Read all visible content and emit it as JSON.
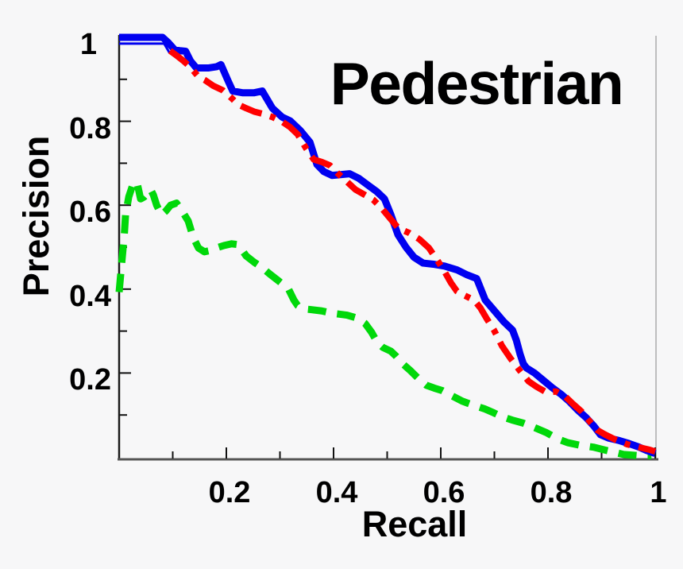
{
  "title": "Pedestrian",
  "chart_data": {
    "type": "line",
    "title": "Pedestrian",
    "xlabel": "Recall",
    "ylabel": "Precision",
    "xlim": [
      0,
      1
    ],
    "ylim": [
      0,
      1
    ],
    "grid": false,
    "legend": null,
    "xticks": {
      "labeled_values": [
        0.2,
        0.4,
        0.6,
        0.8,
        1
      ],
      "labels": [
        "0.2",
        "0.4",
        "0.6",
        "0.8",
        "1"
      ],
      "minor_values": [
        0.1,
        0.3,
        0.5,
        0.7,
        0.9
      ],
      "label_offsets_x": [
        0,
        0,
        0,
        0,
        0
      ]
    },
    "yticks": {
      "labeled_values": [
        0.2,
        0.4,
        0.6,
        0.8,
        1
      ],
      "labels": [
        "0.2",
        "0.4",
        "0.6",
        "0.8",
        "1"
      ],
      "minor_values": [
        0.1,
        0.3,
        0.5,
        0.7,
        0.9
      ],
      "label_offsets_x": [
        0,
        0,
        0,
        0,
        -18
      ]
    },
    "series": [
      {
        "name": "green-dashed",
        "color": "#00d80a",
        "style": "dashed",
        "width": 9,
        "x": [
          0.0,
          0.003,
          0.007,
          0.01,
          0.012,
          0.018,
          0.025,
          0.033,
          0.037,
          0.04,
          0.047,
          0.059,
          0.064,
          0.07,
          0.079,
          0.087,
          0.096,
          0.107,
          0.119,
          0.129,
          0.138,
          0.148,
          0.159,
          0.17,
          0.181,
          0.196,
          0.21,
          0.222,
          0.237,
          0.252,
          0.267,
          0.281,
          0.296,
          0.307,
          0.316,
          0.326,
          0.333,
          0.344,
          0.359,
          0.378,
          0.4,
          0.425,
          0.444,
          0.459,
          0.471,
          0.481,
          0.492,
          0.507,
          0.516,
          0.529,
          0.544,
          0.559,
          0.573,
          0.588,
          0.603,
          0.622,
          0.64,
          0.659,
          0.681,
          0.699,
          0.714,
          0.733,
          0.753,
          0.773,
          0.797,
          0.818,
          0.837,
          0.859,
          0.886,
          0.911,
          0.941,
          0.97,
          0.993
        ],
        "y": [
          0.393,
          0.436,
          0.492,
          0.536,
          0.577,
          0.62,
          0.647,
          0.656,
          0.633,
          0.615,
          0.62,
          0.637,
          0.624,
          0.6,
          0.577,
          0.586,
          0.6,
          0.605,
          0.583,
          0.562,
          0.524,
          0.498,
          0.489,
          0.492,
          0.498,
          0.504,
          0.508,
          0.506,
          0.479,
          0.464,
          0.451,
          0.436,
          0.421,
          0.41,
          0.4,
          0.374,
          0.361,
          0.353,
          0.351,
          0.348,
          0.342,
          0.338,
          0.331,
          0.318,
          0.297,
          0.274,
          0.261,
          0.252,
          0.241,
          0.222,
          0.205,
          0.186,
          0.171,
          0.164,
          0.158,
          0.145,
          0.133,
          0.124,
          0.115,
          0.105,
          0.096,
          0.088,
          0.081,
          0.071,
          0.058,
          0.043,
          0.034,
          0.028,
          0.023,
          0.015,
          0.006,
          0.003,
          0.003
        ]
      },
      {
        "name": "blue-thin",
        "color": "#0000f0",
        "style": "solid",
        "width": 3,
        "x": [
          0.0,
          0.084,
          0.094
        ],
        "y": [
          0.985,
          0.985,
          0.963
        ]
      },
      {
        "name": "blue-solid",
        "color": "#0000f0",
        "style": "solid",
        "width": 9,
        "x": [
          0.0,
          0.081,
          0.092,
          0.104,
          0.115,
          0.124,
          0.133,
          0.144,
          0.166,
          0.182,
          0.19,
          0.203,
          0.212,
          0.23,
          0.252,
          0.267,
          0.286,
          0.304,
          0.319,
          0.338,
          0.356,
          0.369,
          0.382,
          0.397,
          0.415,
          0.43,
          0.447,
          0.464,
          0.481,
          0.495,
          0.507,
          0.52,
          0.535,
          0.55,
          0.567,
          0.588,
          0.607,
          0.63,
          0.649,
          0.667,
          0.683,
          0.699,
          0.717,
          0.734,
          0.741,
          0.748,
          0.754,
          0.76,
          0.775,
          0.791,
          0.809,
          0.825,
          0.84,
          0.856,
          0.871,
          0.886,
          0.898,
          0.913,
          0.933,
          0.951,
          0.969,
          0.985,
          1.0
        ],
        "y": [
          1.0,
          1.0,
          0.987,
          0.97,
          0.968,
          0.967,
          0.944,
          0.927,
          0.927,
          0.93,
          0.935,
          0.897,
          0.872,
          0.868,
          0.868,
          0.872,
          0.831,
          0.81,
          0.801,
          0.778,
          0.75,
          0.697,
          0.68,
          0.671,
          0.673,
          0.675,
          0.664,
          0.648,
          0.632,
          0.615,
          0.577,
          0.53,
          0.5,
          0.476,
          0.462,
          0.459,
          0.455,
          0.446,
          0.434,
          0.425,
          0.374,
          0.35,
          0.323,
          0.302,
          0.278,
          0.245,
          0.222,
          0.212,
          0.2,
          0.183,
          0.164,
          0.149,
          0.132,
          0.111,
          0.094,
          0.073,
          0.053,
          0.045,
          0.039,
          0.032,
          0.024,
          0.015,
          0.008
        ]
      },
      {
        "name": "red-dashdot",
        "color": "#ff0000",
        "style": "dashdot",
        "width": 8,
        "x": [
          0.095,
          0.107,
          0.119,
          0.133,
          0.148,
          0.16,
          0.175,
          0.193,
          0.21,
          0.222,
          0.237,
          0.252,
          0.267,
          0.286,
          0.304,
          0.319,
          0.333,
          0.348,
          0.363,
          0.378,
          0.393,
          0.407,
          0.425,
          0.441,
          0.459,
          0.474,
          0.489,
          0.504,
          0.521,
          0.541,
          0.56,
          0.578,
          0.596,
          0.607,
          0.619,
          0.63,
          0.644,
          0.662,
          0.674,
          0.686,
          0.699,
          0.714,
          0.73,
          0.748,
          0.764,
          0.779,
          0.797,
          0.815,
          0.833,
          0.847,
          0.862,
          0.877,
          0.892,
          0.907,
          0.926,
          0.948,
          0.97,
          0.99,
          1.0
        ],
        "y": [
          0.968,
          0.957,
          0.945,
          0.929,
          0.906,
          0.898,
          0.885,
          0.874,
          0.855,
          0.84,
          0.831,
          0.823,
          0.818,
          0.81,
          0.799,
          0.786,
          0.769,
          0.737,
          0.709,
          0.703,
          0.695,
          0.677,
          0.656,
          0.637,
          0.624,
          0.613,
          0.594,
          0.571,
          0.545,
          0.534,
          0.519,
          0.498,
          0.464,
          0.442,
          0.415,
          0.395,
          0.385,
          0.374,
          0.355,
          0.329,
          0.303,
          0.265,
          0.235,
          0.205,
          0.18,
          0.167,
          0.154,
          0.156,
          0.143,
          0.126,
          0.109,
          0.086,
          0.064,
          0.053,
          0.041,
          0.03,
          0.023,
          0.017,
          0.013
        ]
      }
    ],
    "axis": {
      "spine_color": "#1a1a1a",
      "bottom_color": "#555555",
      "right_color": "#aaaaaa"
    }
  }
}
